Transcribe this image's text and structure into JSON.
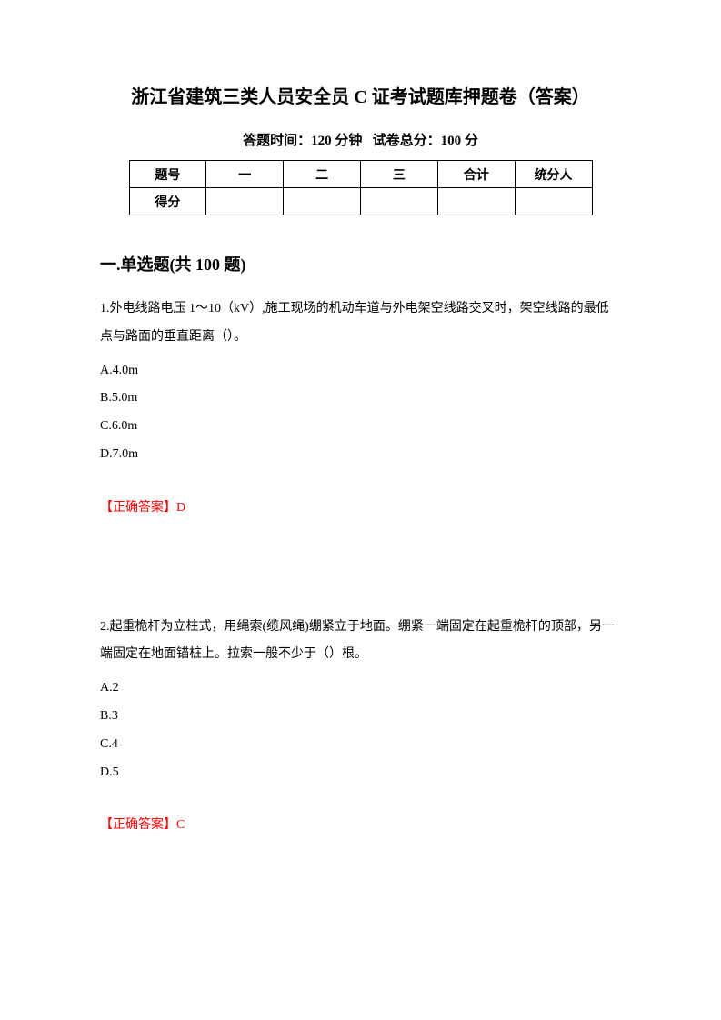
{
  "title": "浙江省建筑三类人员安全员 C 证考试题库押题卷（答案）",
  "subtitle_time_label": "答题时间：120 分钟",
  "subtitle_score_label": "试卷总分：100 分",
  "score_table": {
    "header_label": "题号",
    "score_label": "得分",
    "col1": "一",
    "col2": "二",
    "col3": "三",
    "col4": "合计",
    "col5": "统分人"
  },
  "section_heading": "一.单选题(共 100 题)",
  "questions": [
    {
      "number_text": "1.外电线路电压 1～10（kV）,施工现场的机动车道与外电架空线路交叉时，架空线路的最低点与路面的垂直距离（）。",
      "options": {
        "a": "A.4.0m",
        "b": "B.5.0m",
        "c": "C.6.0m",
        "d": "D.7.0m"
      },
      "answer": "【正确答案】D"
    },
    {
      "number_text": "2.起重桅杆为立柱式，用绳索(缆风绳)绷紧立于地面。绷紧一端固定在起重桅杆的顶部，另一端固定在地面锚桩上。拉索一般不少于（）根。",
      "options": {
        "a": "A.2",
        "b": "B.3",
        "c": "C.4",
        "d": "D.5"
      },
      "answer": "【正确答案】C"
    }
  ],
  "colors": {
    "text": "#000000",
    "answer": "#ff0000",
    "background": "#ffffff",
    "border": "#000000"
  },
  "typography": {
    "title_fontsize": 20,
    "subtitle_fontsize": 15,
    "section_fontsize": 18,
    "body_fontsize": 14,
    "font_family": "SimSun"
  }
}
